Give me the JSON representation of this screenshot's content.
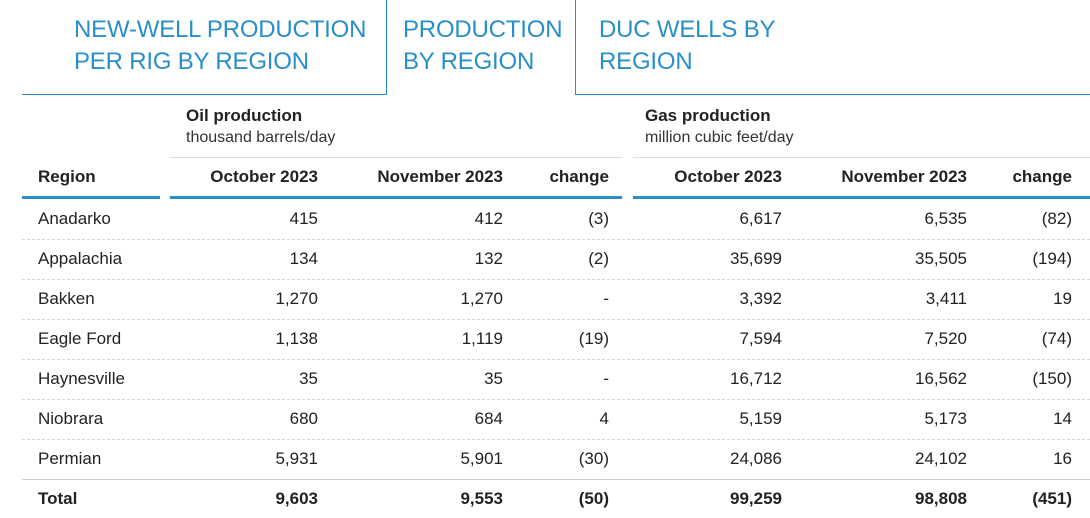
{
  "tabs": [
    {
      "label": "NEW-WELL PRODUCTION\nPER RIG BY REGION",
      "active": false
    },
    {
      "label": "PRODUCTION\nBY REGION",
      "active": true
    },
    {
      "label": "DUC WELLS BY\nREGION",
      "active": false
    }
  ],
  "oil": {
    "title": "Oil production",
    "unit": "thousand barrels/day"
  },
  "gas": {
    "title": "Gas production",
    "unit": "million cubic feet/day"
  },
  "columns": {
    "region": "Region",
    "oil_oct": "October 2023",
    "oil_nov": "November 2023",
    "oil_change": "change",
    "gas_oct": "October 2023",
    "gas_nov": "November 2023",
    "gas_change": "change"
  },
  "rows": [
    {
      "region": "Anadarko",
      "oil_oct": "415",
      "oil_nov": "412",
      "oil_change": "(3)",
      "gas_oct": "6,617",
      "gas_nov": "6,535",
      "gas_change": "(82)"
    },
    {
      "region": "Appalachia",
      "oil_oct": "134",
      "oil_nov": "132",
      "oil_change": "(2)",
      "gas_oct": "35,699",
      "gas_nov": "35,505",
      "gas_change": "(194)"
    },
    {
      "region": "Bakken",
      "oil_oct": "1,270",
      "oil_nov": "1,270",
      "oil_change": "-",
      "gas_oct": "3,392",
      "gas_nov": "3,411",
      "gas_change": "19"
    },
    {
      "region": "Eagle Ford",
      "oil_oct": "1,138",
      "oil_nov": "1,119",
      "oil_change": "(19)",
      "gas_oct": "7,594",
      "gas_nov": "7,520",
      "gas_change": "(74)"
    },
    {
      "region": "Haynesville",
      "oil_oct": "35",
      "oil_nov": "35",
      "oil_change": "-",
      "gas_oct": "16,712",
      "gas_nov": "16,562",
      "gas_change": "(150)"
    },
    {
      "region": "Niobrara",
      "oil_oct": "680",
      "oil_nov": "684",
      "oil_change": "4",
      "gas_oct": "5,159",
      "gas_nov": "5,173",
      "gas_change": "14"
    },
    {
      "region": "Permian",
      "oil_oct": "5,931",
      "oil_nov": "5,901",
      "oil_change": "(30)",
      "gas_oct": "24,086",
      "gas_nov": "24,102",
      "gas_change": "16"
    }
  ],
  "total": {
    "region": "Total",
    "oil_oct": "9,603",
    "oil_nov": "9,553",
    "oil_change": "(50)",
    "gas_oct": "99,259",
    "gas_nov": "98,808",
    "gas_change": "(451)"
  },
  "colors": {
    "accent": "#2a8fc9",
    "text": "#222222"
  }
}
